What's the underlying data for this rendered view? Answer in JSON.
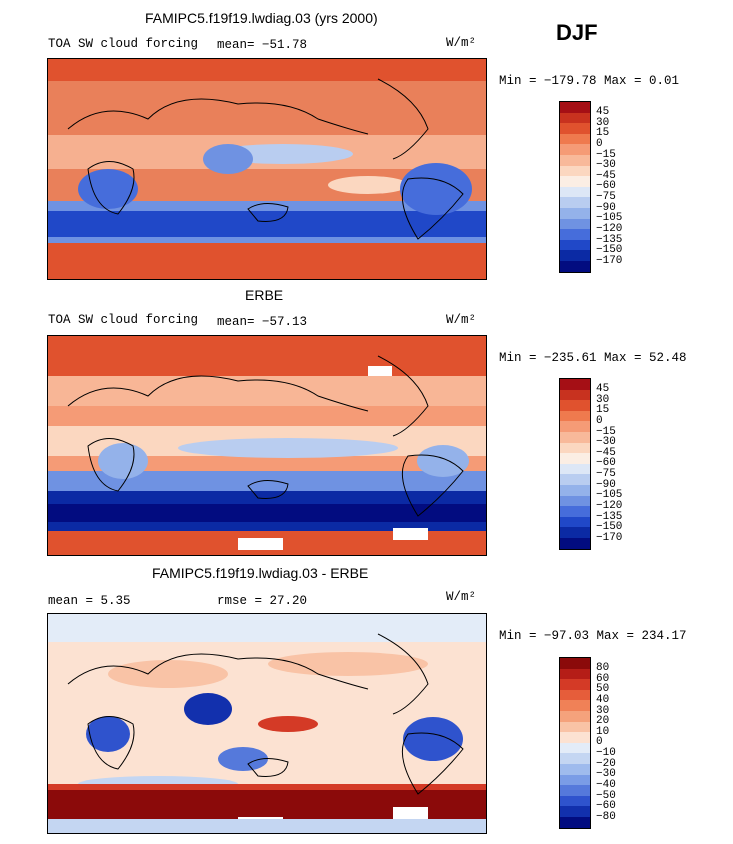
{
  "page": {
    "season": "DJF"
  },
  "chart_data": [
    {
      "type": "heatmap",
      "title": "FAMIPC5.f19f19.lwdiag.03 (yrs 2000)",
      "field": "TOA SW cloud forcing",
      "stat1": "mean= −51.78",
      "units": "W/m²",
      "minmax": "Min = −179.78 Max =   0.01",
      "levels": [
        "45",
        "30",
        "15",
        "0",
        "−15",
        "−30",
        "−45",
        "−60",
        "−75",
        "−90",
        "−105",
        "−120",
        "−135",
        "−150",
        "−170"
      ],
      "colors": [
        "#a50f15",
        "#c8321f",
        "#e0522e",
        "#ef7a4e",
        "#f59b76",
        "#f8b99a",
        "#fbd7c0",
        "#fbeee4",
        "#dde7f6",
        "#b9cdf0",
        "#94b2ea",
        "#6f92e2",
        "#466ddb",
        "#2048c8",
        "#0b2aa4",
        "#020c80"
      ]
    },
    {
      "type": "heatmap",
      "title": "ERBE",
      "field": "TOA SW cloud forcing",
      "stat1": "mean= −57.13",
      "units": "W/m²",
      "minmax": "Min = −235.61 Max =  52.48",
      "levels": [
        "45",
        "30",
        "15",
        "0",
        "−15",
        "−30",
        "−45",
        "−60",
        "−75",
        "−90",
        "−105",
        "−120",
        "−135",
        "−150",
        "−170"
      ],
      "colors": [
        "#a50f15",
        "#c8321f",
        "#e0522e",
        "#ef7a4e",
        "#f59b76",
        "#f8b99a",
        "#fbd7c0",
        "#fbeee4",
        "#dde7f6",
        "#b9cdf0",
        "#94b2ea",
        "#6f92e2",
        "#466ddb",
        "#2048c8",
        "#0b2aa4",
        "#020c80"
      ]
    },
    {
      "type": "heatmap",
      "title": "FAMIPC5.f19f19.lwdiag.03 - ERBE",
      "field": "",
      "stat1": "mean =   5.35",
      "stat2": "rmse =  27.20",
      "units": "W/m²",
      "minmax": "Min = −97.03 Max = 234.17",
      "levels": [
        "80",
        "60",
        "50",
        "40",
        "30",
        "20",
        "10",
        "0",
        "−10",
        "−20",
        "−30",
        "−40",
        "−50",
        "−60",
        "−80"
      ],
      "colors": [
        "#8b0a0a",
        "#b51d17",
        "#d43a26",
        "#e65d3a",
        "#f08157",
        "#f5a27c",
        "#f9c3a6",
        "#fce2d2",
        "#e3ecf8",
        "#c4d6f2",
        "#9fbbed",
        "#7a9ce6",
        "#5579db",
        "#2f53cd",
        "#1230ad",
        "#020c80"
      ]
    }
  ]
}
